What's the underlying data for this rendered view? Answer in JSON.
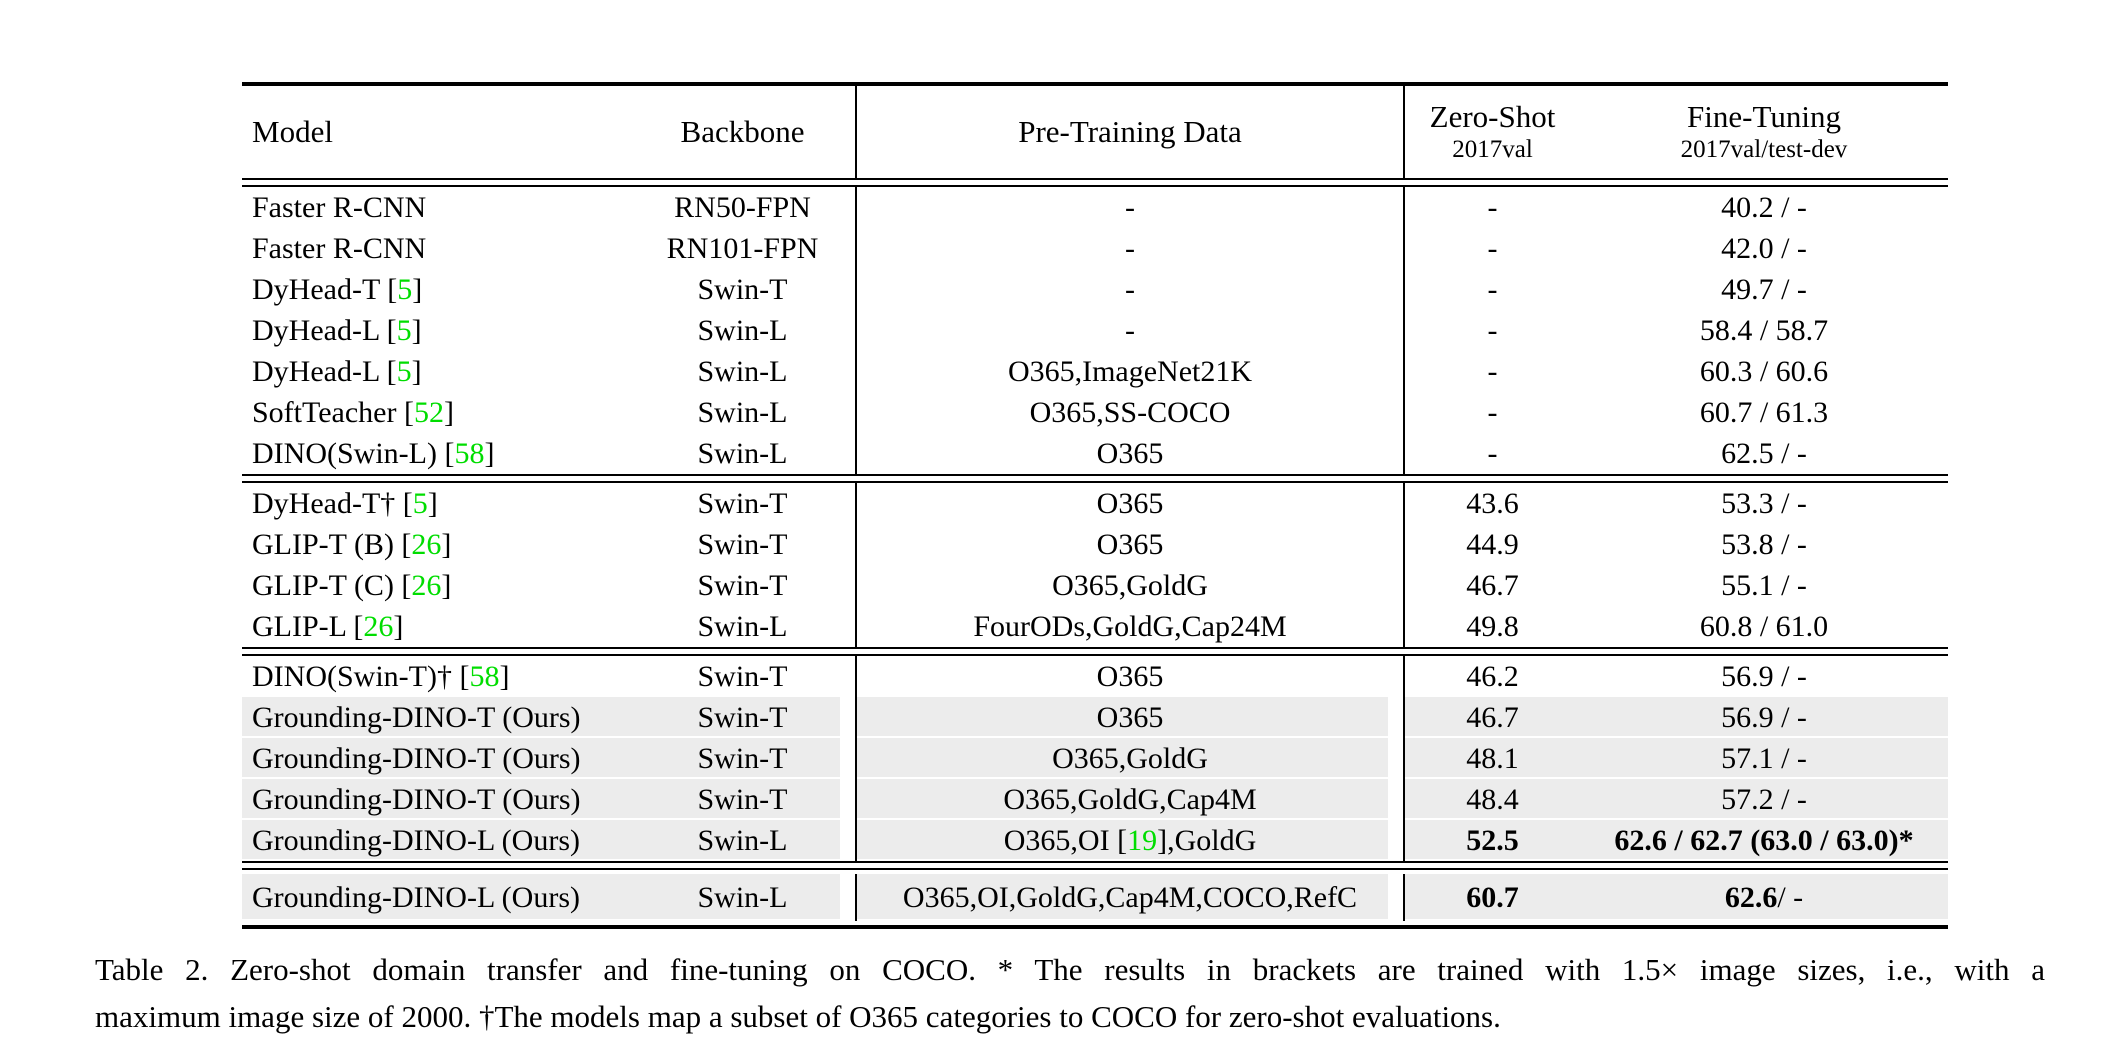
{
  "colors": {
    "citation_green": "#00dd00",
    "row_highlight_gray": "#ececec",
    "text": "#000000",
    "background": "#ffffff"
  },
  "table": {
    "header": {
      "model": "Model",
      "backbone": "Backbone",
      "pretraining": "Pre-Training Data",
      "zero_shot_title": "Zero-Shot",
      "zero_shot_sub": "2017val",
      "fine_tuning_title": "Fine-Tuning",
      "fine_tuning_sub": "2017val/test-dev"
    },
    "groups": [
      {
        "rows": [
          {
            "hl": false,
            "model": {
              "pre": "Faster R-CNN",
              "cite": "",
              "post": ""
            },
            "backbone": "RN50-FPN",
            "pretrain": {
              "pre": "-",
              "cite": "",
              "post": ""
            },
            "zs": {
              "b": "",
              "n": "-"
            },
            "ft": {
              "b": "",
              "n": "40.2 / -"
            }
          },
          {
            "hl": false,
            "model": {
              "pre": "Faster R-CNN",
              "cite": "",
              "post": ""
            },
            "backbone": "RN101-FPN",
            "pretrain": {
              "pre": "-",
              "cite": "",
              "post": ""
            },
            "zs": {
              "b": "",
              "n": "-"
            },
            "ft": {
              "b": "",
              "n": "42.0 / -"
            }
          },
          {
            "hl": false,
            "model": {
              "pre": "DyHead-T [",
              "cite": "5",
              "post": "]"
            },
            "backbone": "Swin-T",
            "pretrain": {
              "pre": "-",
              "cite": "",
              "post": ""
            },
            "zs": {
              "b": "",
              "n": "-"
            },
            "ft": {
              "b": "",
              "n": "49.7 / -"
            }
          },
          {
            "hl": false,
            "model": {
              "pre": "DyHead-L [",
              "cite": "5",
              "post": "]"
            },
            "backbone": "Swin-L",
            "pretrain": {
              "pre": "-",
              "cite": "",
              "post": ""
            },
            "zs": {
              "b": "",
              "n": "-"
            },
            "ft": {
              "b": "",
              "n": "58.4 / 58.7"
            }
          },
          {
            "hl": false,
            "model": {
              "pre": "DyHead-L [",
              "cite": "5",
              "post": "]"
            },
            "backbone": "Swin-L",
            "pretrain": {
              "pre": "O365,ImageNet21K",
              "cite": "",
              "post": ""
            },
            "zs": {
              "b": "",
              "n": "-"
            },
            "ft": {
              "b": "",
              "n": "60.3 / 60.6"
            }
          },
          {
            "hl": false,
            "model": {
              "pre": "SoftTeacher [",
              "cite": "52",
              "post": "]"
            },
            "backbone": "Swin-L",
            "pretrain": {
              "pre": "O365,SS-COCO",
              "cite": "",
              "post": ""
            },
            "zs": {
              "b": "",
              "n": "-"
            },
            "ft": {
              "b": "",
              "n": "60.7 / 61.3"
            }
          },
          {
            "hl": false,
            "model": {
              "pre": "DINO(Swin-L) [",
              "cite": "58",
              "post": "]"
            },
            "backbone": "Swin-L",
            "pretrain": {
              "pre": "O365",
              "cite": "",
              "post": ""
            },
            "zs": {
              "b": "",
              "n": "-"
            },
            "ft": {
              "b": "",
              "n": "62.5 / -"
            }
          }
        ]
      },
      {
        "rows": [
          {
            "hl": false,
            "model": {
              "pre": "DyHead-T† [",
              "cite": "5",
              "post": "]"
            },
            "backbone": "Swin-T",
            "pretrain": {
              "pre": "O365",
              "cite": "",
              "post": ""
            },
            "zs": {
              "b": "",
              "n": "43.6"
            },
            "ft": {
              "b": "",
              "n": "53.3 / -"
            }
          },
          {
            "hl": false,
            "model": {
              "pre": "GLIP-T (B) [",
              "cite": "26",
              "post": "]"
            },
            "backbone": "Swin-T",
            "pretrain": {
              "pre": "O365",
              "cite": "",
              "post": ""
            },
            "zs": {
              "b": "",
              "n": "44.9"
            },
            "ft": {
              "b": "",
              "n": "53.8 / -"
            }
          },
          {
            "hl": false,
            "model": {
              "pre": "GLIP-T (C) [",
              "cite": "26",
              "post": "]"
            },
            "backbone": "Swin-T",
            "pretrain": {
              "pre": "O365,GoldG",
              "cite": "",
              "post": ""
            },
            "zs": {
              "b": "",
              "n": "46.7"
            },
            "ft": {
              "b": "",
              "n": "55.1 / -"
            }
          },
          {
            "hl": false,
            "model": {
              "pre": "GLIP-L [",
              "cite": "26",
              "post": "]"
            },
            "backbone": "Swin-L",
            "pretrain": {
              "pre": "FourODs,GoldG,Cap24M",
              "cite": "",
              "post": ""
            },
            "zs": {
              "b": "",
              "n": "49.8"
            },
            "ft": {
              "b": "",
              "n": "60.8 / 61.0"
            }
          }
        ]
      },
      {
        "rows": [
          {
            "hl": false,
            "model": {
              "pre": "DINO(Swin-T)† [",
              "cite": "58",
              "post": "]"
            },
            "backbone": "Swin-T",
            "pretrain": {
              "pre": "O365",
              "cite": "",
              "post": ""
            },
            "zs": {
              "b": "",
              "n": "46.2"
            },
            "ft": {
              "b": "",
              "n": "56.9 / -"
            }
          },
          {
            "hl": true,
            "model": {
              "pre": "Grounding-DINO-T (Ours)",
              "cite": "",
              "post": ""
            },
            "backbone": "Swin-T",
            "pretrain": {
              "pre": "O365",
              "cite": "",
              "post": ""
            },
            "zs": {
              "b": "",
              "n": "46.7"
            },
            "ft": {
              "b": "",
              "n": "56.9 / -"
            }
          },
          {
            "hl": true,
            "model": {
              "pre": "Grounding-DINO-T (Ours)",
              "cite": "",
              "post": ""
            },
            "backbone": "Swin-T",
            "pretrain": {
              "pre": "O365,GoldG",
              "cite": "",
              "post": ""
            },
            "zs": {
              "b": "",
              "n": "48.1"
            },
            "ft": {
              "b": "",
              "n": "57.1 / -"
            }
          },
          {
            "hl": true,
            "model": {
              "pre": "Grounding-DINO-T (Ours)",
              "cite": "",
              "post": ""
            },
            "backbone": "Swin-T",
            "pretrain": {
              "pre": "O365,GoldG,Cap4M",
              "cite": "",
              "post": ""
            },
            "zs": {
              "b": "",
              "n": "48.4"
            },
            "ft": {
              "b": "",
              "n": "57.2 / -"
            }
          },
          {
            "hl": true,
            "model": {
              "pre": "Grounding-DINO-L (Ours)",
              "cite": "",
              "post": ""
            },
            "backbone": "Swin-L",
            "pretrain": {
              "pre": "O365,OI [",
              "cite": "19",
              "post": "],GoldG"
            },
            "zs": {
              "b": "52.5",
              "n": ""
            },
            "ft": {
              "b": "62.6 / 62.7 (63.0 / 63.0)*",
              "n": ""
            }
          }
        ]
      },
      {
        "rows": [
          {
            "hl": true,
            "model": {
              "pre": "Grounding-DINO-L (Ours)",
              "cite": "",
              "post": ""
            },
            "backbone": "Swin-L",
            "pretrain": {
              "pre": "O365,OI,GoldG,Cap4M,COCO,RefC",
              "cite": "",
              "post": ""
            },
            "zs": {
              "b": "60.7",
              "n": ""
            },
            "ft": {
              "b": "62.6",
              "n": " / -"
            }
          }
        ]
      }
    ]
  },
  "caption": {
    "line1": "Table 2. Zero-shot domain transfer and fine-tuning on COCO. * The results in brackets are trained with 1.5× image sizes, i.e., with a",
    "line2": "maximum image size of 2000. †The models map a subset of O365 categories to COCO for zero-shot evaluations."
  }
}
